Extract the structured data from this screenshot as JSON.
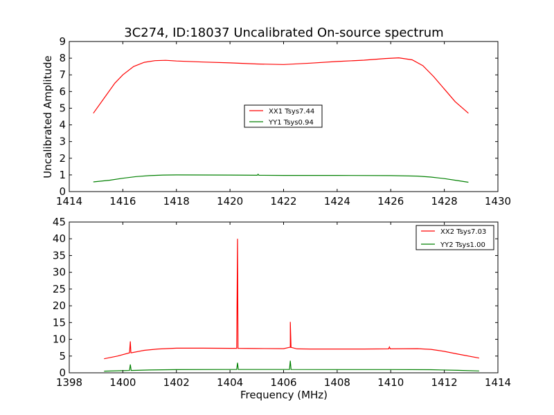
{
  "chart_data": [
    {
      "type": "line",
      "title": "3C274, ID:18037 Uncalibrated On-source spectrum",
      "xlabel": "",
      "ylabel": "Uncalibrated Amplitude",
      "xlim": [
        1414,
        1430
      ],
      "ylim": [
        0,
        9
      ],
      "xticks": [
        "1414",
        "1416",
        "1418",
        "1420",
        "1422",
        "1424",
        "1426",
        "1428",
        "1430"
      ],
      "yticks": [
        "0",
        "1",
        "2",
        "3",
        "4",
        "5",
        "6",
        "7",
        "8",
        "9"
      ],
      "grid": false,
      "legend_position": "center",
      "series": [
        {
          "name": "XX1 Tsys7.44",
          "color": "#ff0000",
          "x": [
            1414.9,
            1415.3,
            1415.7,
            1416.0,
            1416.4,
            1416.8,
            1417.2,
            1417.6,
            1418.0,
            1419.0,
            1420.0,
            1421.0,
            1422.0,
            1423.0,
            1424.0,
            1425.0,
            1425.8,
            1426.3,
            1426.8,
            1427.2,
            1427.6,
            1428.0,
            1428.4,
            1428.9
          ],
          "y": [
            4.7,
            5.6,
            6.5,
            7.0,
            7.5,
            7.75,
            7.85,
            7.87,
            7.83,
            7.77,
            7.72,
            7.65,
            7.62,
            7.7,
            7.8,
            7.88,
            7.98,
            8.02,
            7.9,
            7.55,
            6.9,
            6.15,
            5.4,
            4.7
          ]
        },
        {
          "name": "YY1 Tsys0.94",
          "color": "#008000",
          "x": [
            1414.9,
            1415.5,
            1416.0,
            1416.5,
            1417.0,
            1417.5,
            1418.0,
            1420.0,
            1422.0,
            1424.0,
            1426.0,
            1427.0,
            1427.5,
            1428.0,
            1428.5,
            1428.9
          ],
          "y": [
            0.58,
            0.68,
            0.8,
            0.9,
            0.96,
            0.99,
            1.0,
            0.99,
            0.97,
            0.97,
            0.96,
            0.93,
            0.87,
            0.78,
            0.66,
            0.56
          ],
          "spikes": [
            {
              "x": 1421.05,
              "y": 1.04
            }
          ]
        }
      ]
    },
    {
      "type": "line",
      "title": "",
      "xlabel": "Frequency (MHz)",
      "ylabel": "",
      "xlim": [
        1398,
        1414
      ],
      "ylim": [
        0,
        45
      ],
      "xticks": [
        "1398",
        "1400",
        "1402",
        "1404",
        "1406",
        "1408",
        "1410",
        "1412",
        "1414"
      ],
      "yticks": [
        "0",
        "5",
        "10",
        "15",
        "20",
        "25",
        "30",
        "35",
        "40",
        "45"
      ],
      "grid": false,
      "legend_position": "top-right",
      "series": [
        {
          "name": "XX2 Tsys7.03",
          "color": "#ff0000",
          "x": [
            1399.3,
            1399.8,
            1400.3,
            1400.8,
            1401.3,
            1402.0,
            1403.0,
            1404.0,
            1404.3,
            1405.0,
            1406.0,
            1406.25,
            1406.5,
            1407.0,
            1408.0,
            1409.0,
            1410.0,
            1411.0,
            1411.5,
            1412.0,
            1412.5,
            1413.3
          ],
          "y": [
            4.2,
            5.0,
            6.0,
            6.7,
            7.1,
            7.35,
            7.35,
            7.3,
            7.3,
            7.25,
            7.2,
            7.6,
            7.15,
            7.1,
            7.1,
            7.1,
            7.15,
            7.2,
            7.0,
            6.4,
            5.6,
            4.4
          ],
          "spikes": [
            {
              "x": 1400.28,
              "y": 9.4
            },
            {
              "x": 1404.28,
              "y": 40.0
            },
            {
              "x": 1406.25,
              "y": 15.2
            },
            {
              "x": 1409.95,
              "y": 7.7
            }
          ]
        },
        {
          "name": "YY2 Tsys1.00",
          "color": "#008000",
          "x": [
            1399.3,
            1400.0,
            1401.0,
            1402.0,
            1404.0,
            1406.0,
            1408.0,
            1410.0,
            1411.5,
            1412.5,
            1413.3
          ],
          "y": [
            0.5,
            0.65,
            0.85,
            0.95,
            1.0,
            1.0,
            0.98,
            0.98,
            0.93,
            0.75,
            0.55
          ],
          "spikes": [
            {
              "x": 1400.28,
              "y": 2.5
            },
            {
              "x": 1404.28,
              "y": 3.0
            },
            {
              "x": 1406.25,
              "y": 3.6
            }
          ]
        }
      ]
    }
  ]
}
